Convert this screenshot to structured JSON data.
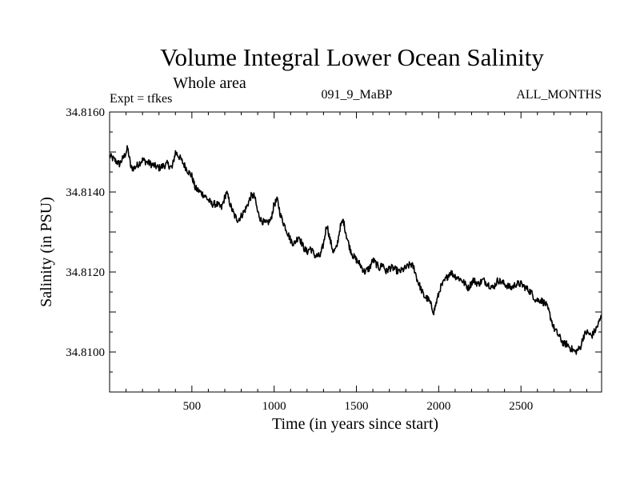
{
  "chart_data": {
    "type": "line",
    "title": "Volume Integral Lower Ocean Salinity",
    "subtitle": "Whole area",
    "annotations": {
      "left": "Expt = tfkes",
      "center": "091_9_MaBP",
      "right": "ALL_MONTHS"
    },
    "xlabel": "Time (in years since start)",
    "ylabel": "Salinity (in PSU)",
    "xlim": [
      0,
      2990
    ],
    "ylim": [
      34.809,
      34.816
    ],
    "xticks": [
      500,
      1000,
      1500,
      2000,
      2500
    ],
    "yticks": [
      34.81,
      34.812,
      34.814,
      34.816
    ],
    "ytick_labels": [
      "34.8100",
      "34.8120",
      "34.8140",
      "34.8160"
    ],
    "grid": false,
    "legend": "none",
    "series": [
      {
        "x": [
          0,
          30,
          60,
          90,
          110,
          130,
          150,
          200,
          250,
          300,
          350,
          380,
          400,
          420,
          450,
          480,
          500,
          520,
          550,
          580,
          620,
          650,
          680,
          710,
          740,
          760,
          780,
          800,
          830,
          860,
          880,
          900,
          920,
          950,
          980,
          1000,
          1020,
          1040,
          1060,
          1080,
          1100,
          1120,
          1150,
          1180,
          1200,
          1220,
          1250,
          1280,
          1300,
          1320,
          1340,
          1360,
          1380,
          1400,
          1420,
          1440,
          1460,
          1480,
          1500,
          1520,
          1550,
          1580,
          1600,
          1640,
          1660,
          1680,
          1700,
          1720,
          1760,
          1800,
          1830,
          1850,
          1870,
          1890,
          1910,
          1940,
          1970,
          1990,
          2010,
          2040,
          2070,
          2100,
          2140,
          2180,
          2210,
          2240,
          2270,
          2300,
          2330,
          2360,
          2400,
          2440,
          2470,
          2500,
          2530,
          2560,
          2590,
          2620,
          2650,
          2670,
          2700,
          2730,
          2760,
          2780,
          2800,
          2830,
          2860,
          2880,
          2900,
          2930,
          2960,
          2980,
          2990
        ],
        "y": [
          34.8149,
          34.8148,
          34.8147,
          34.8149,
          34.8151,
          34.8146,
          34.8146,
          34.8148,
          34.8147,
          34.8146,
          34.8147,
          34.8146,
          34.815,
          34.8149,
          34.8147,
          34.8145,
          34.8144,
          34.8141,
          34.814,
          34.8139,
          34.8137,
          34.8137,
          34.8136,
          34.814,
          34.8136,
          34.8134,
          34.8133,
          34.8134,
          34.8136,
          34.8139,
          34.8139,
          34.8135,
          34.8133,
          34.8132,
          34.8133,
          34.8137,
          34.8138,
          34.8134,
          34.8132,
          34.813,
          34.8128,
          34.8127,
          34.8129,
          34.8126,
          34.8125,
          34.8126,
          34.8124,
          34.8124,
          34.8127,
          34.8132,
          34.8128,
          34.8125,
          34.8126,
          34.8131,
          34.8133,
          34.8129,
          34.8126,
          34.8124,
          34.8123,
          34.8122,
          34.812,
          34.8121,
          34.8123,
          34.8121,
          34.8122,
          34.812,
          34.8121,
          34.8121,
          34.812,
          34.8121,
          34.8122,
          34.8121,
          34.8118,
          34.8116,
          34.8114,
          34.8113,
          34.811,
          34.8113,
          34.8116,
          34.8118,
          34.812,
          34.8119,
          34.8118,
          34.8116,
          34.8118,
          34.8117,
          34.8118,
          34.8117,
          34.8116,
          34.8118,
          34.8117,
          34.8116,
          34.8117,
          34.8117,
          34.8116,
          34.8115,
          34.8113,
          34.8113,
          34.8112,
          34.811,
          34.8106,
          34.8104,
          34.8102,
          34.8102,
          34.8101,
          34.81,
          34.8101,
          34.8104,
          34.8105,
          34.8104,
          34.8106,
          34.8108,
          34.8109
        ]
      }
    ]
  }
}
